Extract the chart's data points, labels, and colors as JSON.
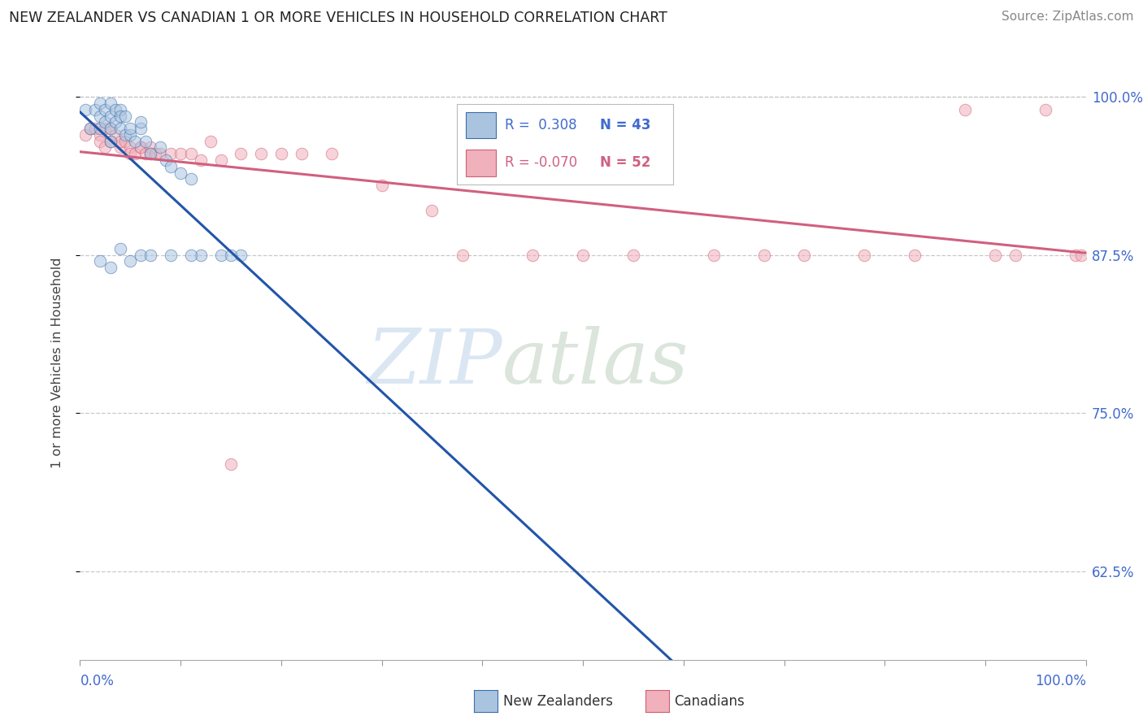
{
  "title": "NEW ZEALANDER VS CANADIAN 1 OR MORE VEHICLES IN HOUSEHOLD CORRELATION CHART",
  "source": "Source: ZipAtlas.com",
  "ylabel": "1 or more Vehicles in Household",
  "xlim": [
    0.0,
    1.0
  ],
  "ylim": [
    0.555,
    1.025
  ],
  "yticks": [
    0.625,
    0.75,
    0.875,
    1.0
  ],
  "ytick_labels": [
    "62.5%",
    "75.0%",
    "87.5%",
    "100.0%"
  ],
  "bg_color": "#ffffff",
  "grid_color": "#c8c8c8",
  "nz_color": "#aac4e0",
  "nz_edge_color": "#3a6eaa",
  "nz_line_color": "#2255aa",
  "ca_color": "#f0b0bc",
  "ca_edge_color": "#d06070",
  "ca_line_color": "#d06080",
  "nz_R": 0.308,
  "nz_N": 43,
  "ca_R": -0.07,
  "ca_N": 52,
  "nz_x": [
    0.005,
    0.01,
    0.015,
    0.02,
    0.02,
    0.02,
    0.025,
    0.025,
    0.03,
    0.03,
    0.03,
    0.03,
    0.035,
    0.035,
    0.04,
    0.04,
    0.04,
    0.045,
    0.045,
    0.05,
    0.05,
    0.055,
    0.06,
    0.06,
    0.065,
    0.07,
    0.08,
    0.085,
    0.09,
    0.1,
    0.11,
    0.12,
    0.14,
    0.16,
    0.02,
    0.03,
    0.04,
    0.05,
    0.06,
    0.07,
    0.09,
    0.11,
    0.15
  ],
  "nz_y": [
    0.99,
    0.975,
    0.99,
    0.985,
    0.995,
    0.975,
    0.98,
    0.99,
    0.985,
    0.995,
    0.975,
    0.965,
    0.99,
    0.98,
    0.975,
    0.99,
    0.985,
    0.97,
    0.985,
    0.97,
    0.975,
    0.965,
    0.975,
    0.98,
    0.965,
    0.955,
    0.96,
    0.95,
    0.945,
    0.94,
    0.935,
    0.875,
    0.875,
    0.875,
    0.87,
    0.865,
    0.88,
    0.87,
    0.875,
    0.875,
    0.875,
    0.875,
    0.875
  ],
  "ca_x": [
    0.005,
    0.01,
    0.015,
    0.02,
    0.02,
    0.025,
    0.025,
    0.03,
    0.03,
    0.035,
    0.04,
    0.04,
    0.045,
    0.05,
    0.05,
    0.055,
    0.06,
    0.06,
    0.065,
    0.07,
    0.07,
    0.075,
    0.08,
    0.09,
    0.1,
    0.11,
    0.12,
    0.13,
    0.14,
    0.15,
    0.16,
    0.18,
    0.2,
    0.22,
    0.25,
    0.3,
    0.35,
    0.38,
    0.45,
    0.5,
    0.55,
    0.63,
    0.68,
    0.72,
    0.78,
    0.83,
    0.88,
    0.91,
    0.93,
    0.96,
    0.99,
    0.995
  ],
  "ca_y": [
    0.97,
    0.975,
    0.975,
    0.97,
    0.965,
    0.975,
    0.96,
    0.975,
    0.965,
    0.97,
    0.96,
    0.965,
    0.965,
    0.96,
    0.955,
    0.955,
    0.96,
    0.96,
    0.955,
    0.96,
    0.955,
    0.955,
    0.955,
    0.955,
    0.955,
    0.955,
    0.95,
    0.965,
    0.95,
    0.71,
    0.955,
    0.955,
    0.955,
    0.955,
    0.955,
    0.93,
    0.91,
    0.875,
    0.875,
    0.875,
    0.875,
    0.875,
    0.875,
    0.875,
    0.875,
    0.875,
    0.99,
    0.875,
    0.875,
    0.99,
    0.875,
    0.875
  ],
  "watermark_zip": "ZIP",
  "watermark_atlas": "atlas",
  "marker_size": 110,
  "alpha": 0.55,
  "line_width": 2.2
}
